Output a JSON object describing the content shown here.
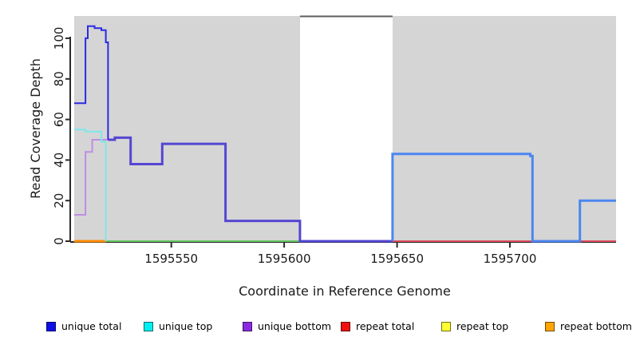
{
  "figure": {
    "xlabel": "Coordinate in Reference Genome",
    "ylabel": "Read Coverage Depth"
  },
  "chart_data": {
    "type": "line",
    "subtype": "step-coverage-depth",
    "title": "",
    "xlabel": "Coordinate in Reference Genome",
    "ylabel": "Read Coverage Depth",
    "xlim": [
      1595507,
      1595747
    ],
    "ylim": [
      0,
      111
    ],
    "x_ticks": [
      1595550,
      1595600,
      1595650,
      1595700
    ],
    "y_ticks": [
      0,
      20,
      40,
      60,
      80,
      100
    ],
    "grid": false,
    "legend_position": "bottom",
    "background_regions": [
      {
        "name": "covered-left",
        "x0": 1595507,
        "x1": 1595607,
        "color": "#d5d5d5"
      },
      {
        "name": "no-data-gap",
        "x0": 1595607,
        "x1": 1595648,
        "color": "#ffffff",
        "top_line_color": "#5e5e5e"
      },
      {
        "name": "covered-right",
        "x0": 1595648,
        "x1": 1595747,
        "color": "#d5d5d5"
      }
    ],
    "series": [
      {
        "name": "zero-baseline-green",
        "color": "#62c462",
        "width": 2,
        "points": [
          [
            1595521,
            0
          ],
          [
            1595607,
            0
          ]
        ]
      },
      {
        "name": "repeat-bottom",
        "color": "#ff8c00",
        "width": 3,
        "points": [
          [
            1595507,
            0
          ],
          [
            1595521,
            0
          ]
        ]
      },
      {
        "name": "repeat-total",
        "color": "#dc4b5e",
        "width": 2,
        "points": [
          [
            1595648,
            0
          ],
          [
            1595747,
            0
          ]
        ]
      },
      {
        "name": "unique-bottom",
        "color": "#bd8fe2",
        "width": 2,
        "points": [
          [
            1595507,
            13
          ],
          [
            1595512,
            13
          ],
          [
            1595512,
            44
          ],
          [
            1595515,
            50
          ],
          [
            1595522,
            50
          ]
        ]
      },
      {
        "name": "unique-top",
        "color": "#7ee7ec",
        "width": 2,
        "points": [
          [
            1595507,
            55
          ],
          [
            1595512,
            54
          ],
          [
            1595519,
            49
          ],
          [
            1595521,
            49
          ],
          [
            1595521,
            0
          ]
        ]
      },
      {
        "name": "unique-total-bottom-overlap",
        "color": "#5546d2",
        "width": 3,
        "points": [
          [
            1595522,
            50
          ],
          [
            1595525,
            51
          ],
          [
            1595532,
            38
          ],
          [
            1595546,
            48
          ],
          [
            1595574,
            10
          ],
          [
            1595607,
            0
          ],
          [
            1595648,
            0
          ]
        ]
      },
      {
        "name": "unique-total",
        "color": "#2b2be2",
        "width": 2,
        "points": [
          [
            1595507,
            68
          ],
          [
            1595512,
            100
          ],
          [
            1595513,
            106
          ],
          [
            1595516,
            105
          ],
          [
            1595519,
            104
          ],
          [
            1595521,
            98
          ],
          [
            1595522,
            98
          ],
          [
            1595522,
            50
          ]
        ]
      },
      {
        "name": "unique-total-top-overlap",
        "color": "#4c86f0",
        "width": 3,
        "points": [
          [
            1595648,
            0
          ],
          [
            1595648,
            43
          ],
          [
            1595709,
            42
          ],
          [
            1595710,
            0
          ],
          [
            1595731,
            0
          ],
          [
            1595731,
            20
          ],
          [
            1595747,
            20
          ]
        ]
      }
    ],
    "legend": [
      {
        "label": "unique total",
        "color": "#0f0fe8"
      },
      {
        "label": "unique top",
        "color": "#00f0f0"
      },
      {
        "label": "unique bottom",
        "color": "#8a2be2"
      },
      {
        "label": "repeat total",
        "color": "#ee1111"
      },
      {
        "label": "repeat top",
        "color": "#ffff33"
      },
      {
        "label": "repeat bottom",
        "color": "#ffa502"
      }
    ]
  }
}
